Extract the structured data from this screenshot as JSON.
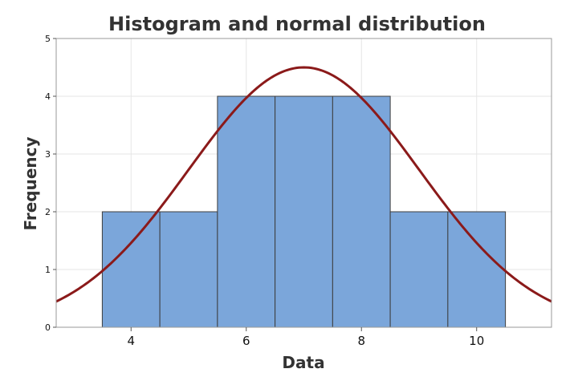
{
  "chart_data": {
    "type": "bar",
    "title": "Histogram and normal distribution",
    "xlabel": "Data",
    "ylabel": "Frequency",
    "xlim": [
      2.7,
      11.3
    ],
    "ylim": [
      0,
      5
    ],
    "xticks": [
      4,
      6,
      8,
      10
    ],
    "yticks": [
      0,
      1,
      2,
      3,
      4,
      5
    ],
    "grid": true,
    "bins": [
      {
        "x0": 3.5,
        "x1": 4.5,
        "count": 2
      },
      {
        "x0": 4.5,
        "x1": 5.5,
        "count": 2
      },
      {
        "x0": 5.5,
        "x1": 6.5,
        "count": 4
      },
      {
        "x0": 6.5,
        "x1": 7.5,
        "count": 4
      },
      {
        "x0": 7.5,
        "x1": 8.5,
        "count": 4
      },
      {
        "x0": 8.5,
        "x1": 9.5,
        "count": 2
      },
      {
        "x0": 9.5,
        "x1": 10.5,
        "count": 2
      }
    ],
    "normal_curve": {
      "mean": 7,
      "sd": 2,
      "peak": 4.5
    },
    "colors": {
      "bar_fill": "#7BA6DA",
      "bar_stroke": "#3d3d3d",
      "curve": "#8B1A1A",
      "grid": "#e6e6e6",
      "axis": "#9a9a9a"
    }
  }
}
